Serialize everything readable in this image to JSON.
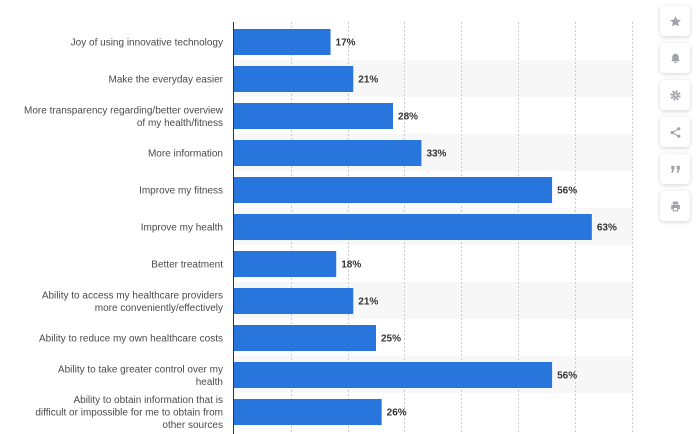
{
  "chart_data": {
    "type": "bar",
    "orientation": "horizontal",
    "categories": [
      "Joy of using innovative technology",
      "Make the everyday easier",
      "More transparency regarding/better overview of my health/fitness",
      "More information",
      "Improve my fitness",
      "Improve my health",
      "Better treatment",
      "Ability to access my healthcare providers more conveniently/effectively",
      "Ability to reduce my own healthcare costs",
      "Ability to take greater control over my health",
      "Ability to obtain information that is difficult or impossible for me to obtain from other sources"
    ],
    "values": [
      17,
      21,
      28,
      33,
      56,
      63,
      18,
      21,
      25,
      56,
      26
    ],
    "value_labels": [
      "17%",
      "21%",
      "28%",
      "33%",
      "56%",
      "63%",
      "18%",
      "21%",
      "25%",
      "56%",
      "26%"
    ],
    "xlim": [
      0,
      70
    ],
    "grid": true,
    "bar_color": "#2876dd"
  },
  "toolbar": {
    "icons": [
      "star-icon",
      "bell-icon",
      "gear-icon",
      "share-icon",
      "quote-icon",
      "print-icon"
    ]
  }
}
